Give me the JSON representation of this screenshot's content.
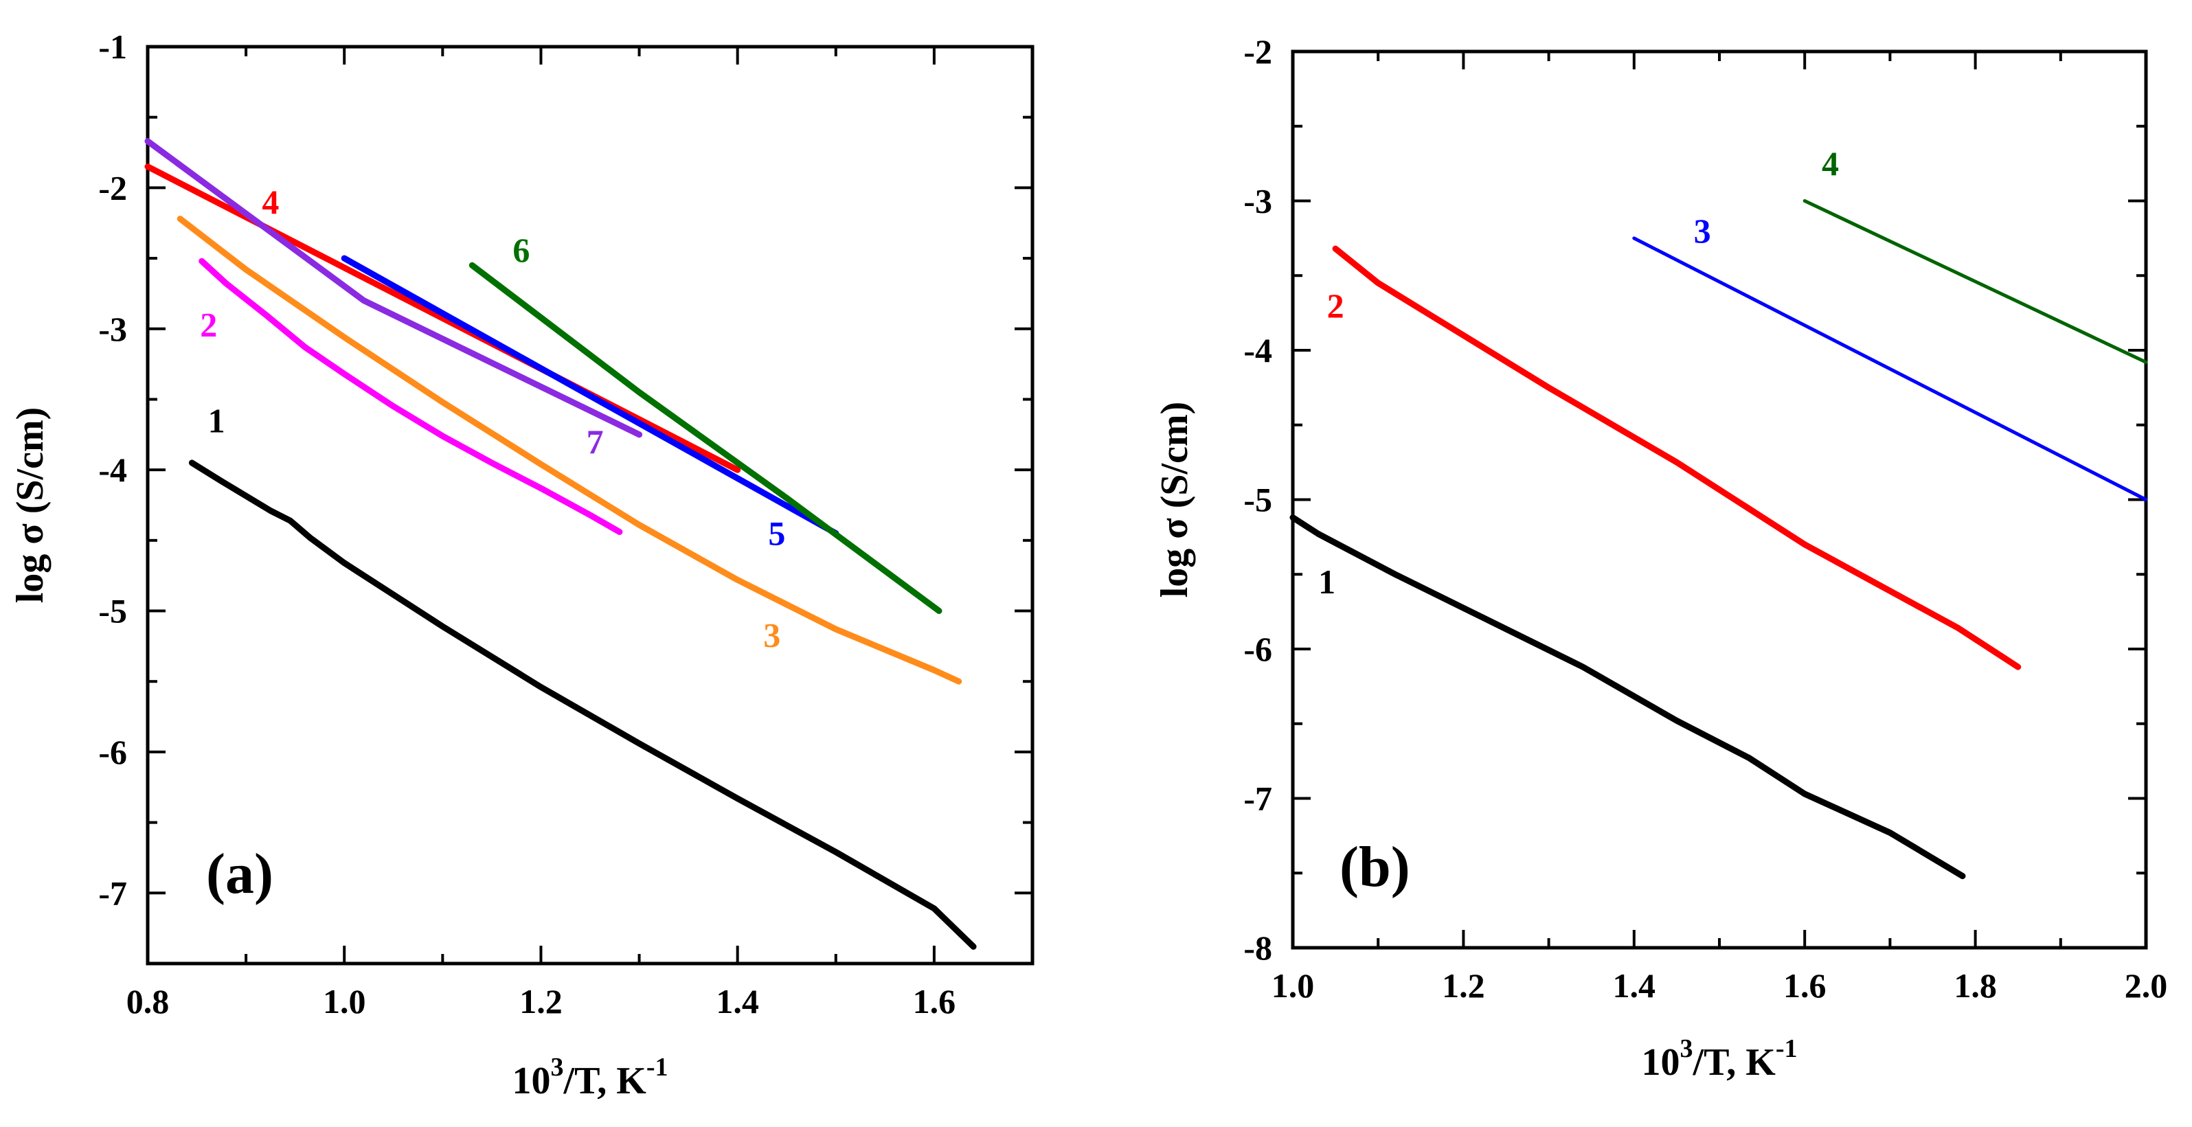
{
  "figure": {
    "panels": [
      "(a)",
      "(b)"
    ]
  },
  "chart_data": [
    {
      "type": "line",
      "panel_label": "(a)",
      "xlabel": "10",
      "xlabel_sup": "3",
      "xlabel_rest": "/T, K",
      "xlabel_exp": "-1",
      "ylabel": "log σ (S/cm)",
      "xlim": [
        0.8,
        1.7
      ],
      "ylim": [
        -7.5,
        -1
      ],
      "x_ticks": [
        0.8,
        1.0,
        1.2,
        1.4,
        1.6
      ],
      "x_tick_labels": [
        "0.8",
        "1.0",
        "1.2",
        "1.4",
        "1.6"
      ],
      "y_ticks": [
        -1,
        -2,
        -3,
        -4,
        -5,
        -6,
        -7
      ],
      "y_tick_labels": [
        "-1",
        "-2",
        "-3",
        "-4",
        "-5",
        "-6",
        "-7"
      ],
      "series": [
        {
          "name": "1",
          "color": "#000000",
          "label_at": [
            0.87,
            -3.65
          ],
          "x": [
            0.845,
            0.875,
            0.925,
            0.945,
            0.965,
            1.0,
            1.1,
            1.2,
            1.3,
            1.4,
            1.5,
            1.6,
            1.64
          ],
          "y": [
            -3.95,
            -4.08,
            -4.29,
            -4.36,
            -4.48,
            -4.66,
            -5.11,
            -5.54,
            -5.94,
            -6.33,
            -6.71,
            -7.11,
            -7.38
          ]
        },
        {
          "name": "2",
          "color": "#ff00ff",
          "label_at": [
            0.862,
            -2.97
          ],
          "x": [
            0.855,
            0.88,
            0.92,
            0.96,
            1.0,
            1.05,
            1.1,
            1.15,
            1.2,
            1.25,
            1.28
          ],
          "y": [
            -2.52,
            -2.68,
            -2.9,
            -3.13,
            -3.32,
            -3.55,
            -3.76,
            -3.95,
            -4.13,
            -4.32,
            -4.44
          ]
        },
        {
          "name": "3",
          "color": "#ff8c1a",
          "label_at": [
            1.435,
            -5.17
          ],
          "x": [
            0.833,
            0.9,
            1.0,
            1.1,
            1.2,
            1.3,
            1.4,
            1.5,
            1.6,
            1.625
          ],
          "y": [
            -2.22,
            -2.58,
            -3.06,
            -3.52,
            -3.96,
            -4.39,
            -4.78,
            -5.13,
            -5.42,
            -5.5
          ]
        },
        {
          "name": "4",
          "color": "#ff0000",
          "label_at": [
            0.925,
            -2.1
          ],
          "x": [
            0.8,
            1.4
          ],
          "y": [
            -1.85,
            -4.0
          ]
        },
        {
          "name": "5",
          "color": "#0000ff",
          "label_at": [
            1.44,
            -4.45
          ],
          "x": [
            1.0,
            1.5
          ],
          "y": [
            -2.5,
            -4.45
          ]
        },
        {
          "name": "6",
          "color": "#007000",
          "label_at": [
            1.18,
            -2.44
          ],
          "x": [
            1.13,
            1.3,
            1.45,
            1.605
          ],
          "y": [
            -2.55,
            -3.45,
            -4.2,
            -5.0
          ]
        },
        {
          "name": "7",
          "color": "#8a2be2",
          "label_at": [
            1.255,
            -3.8
          ],
          "x": [
            0.8,
            1.02,
            1.3
          ],
          "y": [
            -1.67,
            -2.8,
            -3.75
          ]
        }
      ]
    },
    {
      "type": "line",
      "panel_label": "(b)",
      "xlabel": "10",
      "xlabel_sup": "3",
      "xlabel_rest": "/T, K",
      "xlabel_exp": "-1",
      "ylabel": "log σ (S/cm)",
      "xlim": [
        1.0,
        2.0
      ],
      "ylim": [
        -8,
        -2
      ],
      "x_ticks": [
        1.0,
        1.2,
        1.4,
        1.6,
        1.8,
        2.0
      ],
      "x_tick_labels": [
        "1.0",
        "1.2",
        "1.4",
        "1.6",
        "1.8",
        "2.0"
      ],
      "y_ticks": [
        -2,
        -3,
        -4,
        -5,
        -6,
        -7,
        -8
      ],
      "y_tick_labels": [
        "-2",
        "-3",
        "-4",
        "-5",
        "-6",
        "-7",
        "-8"
      ],
      "series": [
        {
          "name": "1",
          "color": "#000000",
          "label_at": [
            1.04,
            -5.55
          ],
          "x": [
            1.0,
            1.03,
            1.12,
            1.23,
            1.34,
            1.45,
            1.535,
            1.6,
            1.7,
            1.785
          ],
          "y": [
            -5.12,
            -5.23,
            -5.5,
            -5.81,
            -6.12,
            -6.48,
            -6.73,
            -6.97,
            -7.23,
            -7.52
          ]
        },
        {
          "name": "2",
          "color": "#ff0000",
          "label_at": [
            1.05,
            -3.7
          ],
          "x": [
            1.05,
            1.1,
            1.16,
            1.3,
            1.45,
            1.6,
            1.78,
            1.85
          ],
          "y": [
            -3.32,
            -3.55,
            -3.76,
            -4.25,
            -4.75,
            -5.3,
            -5.86,
            -6.12
          ]
        },
        {
          "name": "3",
          "color": "#0000ff",
          "label_at": [
            1.48,
            -3.2
          ],
          "x": [
            1.4,
            2.0
          ],
          "y": [
            -3.25,
            -5.0
          ]
        },
        {
          "name": "4",
          "color": "#006400",
          "label_at": [
            1.63,
            -2.75
          ],
          "x": [
            1.6,
            2.0
          ],
          "y": [
            -3.0,
            -4.08
          ]
        }
      ]
    }
  ]
}
